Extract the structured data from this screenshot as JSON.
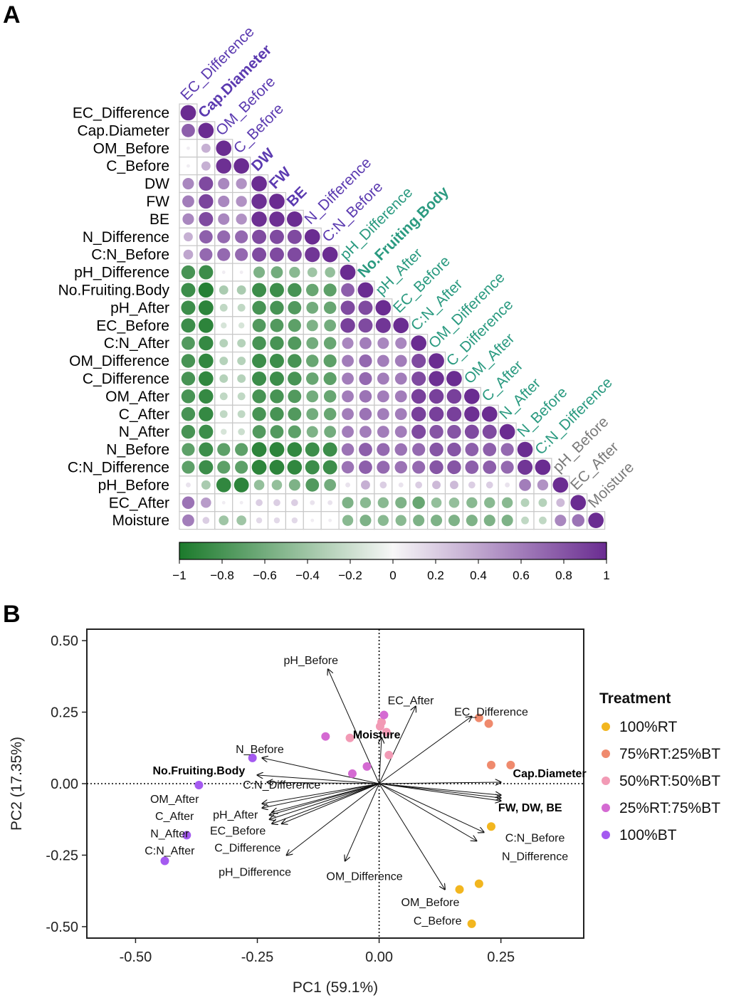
{
  "figure": {
    "panel_a_letter": "A",
    "panel_b_letter": "B"
  },
  "colors": {
    "purple_strong": "#6a2c91",
    "green_strong": "#1b7a2b",
    "neutral": "#f7f7f7",
    "label_purple": "#5b3ab0",
    "label_green": "#2a9a80",
    "label_gray": "#7a7a7a",
    "grid": "#c8c8c8",
    "treatment_100RT": "#f2b61f",
    "treatment_75RT25BT": "#ef8a6d",
    "treatment_50RT50BT": "#f29ab5",
    "treatment_25RT75BT": "#d46ad2",
    "treatment_100BT": "#a45af0"
  },
  "chart_data": [
    {
      "type": "heatmap",
      "variables": [
        "EC_Difference",
        "Cap.Diameter",
        "OM_Before",
        "C_Before",
        "DW",
        "FW",
        "BE",
        "N_Difference",
        "C:N_Before",
        "pH_Difference",
        "No.Fruiting.Body",
        "pH_After",
        "EC_Before",
        "C:N_After",
        "OM_Difference",
        "C_Difference",
        "OM_After",
        "C_After",
        "N_After",
        "N_Before",
        "C:N_Difference",
        "pH_Before",
        "EC_After",
        "Moisture"
      ],
      "column_labels": [
        "EC_Difference",
        "Cap.Diameter",
        "OM_Before",
        "C_Before",
        "DW",
        "FW",
        "BE",
        "N_Difference",
        "C:N_Before",
        "pH_Difference",
        "No.Fruiting.Body",
        "pH_After",
        "EC_Before",
        "C:N_After",
        "OM_Difference",
        "C_Difference",
        "OM_After",
        "C_After",
        "N_After",
        "N_Before",
        "C:N_Difference",
        "pH_Before",
        "EC_After",
        "Moisture"
      ],
      "bold_column_labels": [
        "Cap.Diameter",
        "DW",
        "FW",
        "BE",
        "No.Fruiting.Body"
      ],
      "label_groups": [
        "purple",
        "purple",
        "purple",
        "purple",
        "purple",
        "purple",
        "purple",
        "purple",
        "purple",
        "green",
        "green",
        "green",
        "green",
        "green",
        "green",
        "green",
        "green",
        "green",
        "green",
        "green",
        "green",
        "gray",
        "gray",
        "gray"
      ],
      "lower_triangle": [
        [
          1
        ],
        [
          0.75,
          1
        ],
        [
          0.05,
          0.35,
          1
        ],
        [
          0.05,
          0.35,
          0.98,
          1
        ],
        [
          0.55,
          0.85,
          0.55,
          0.5,
          1
        ],
        [
          0.6,
          0.88,
          0.55,
          0.5,
          0.98,
          1
        ],
        [
          0.55,
          0.85,
          0.55,
          0.5,
          0.98,
          0.98,
          1
        ],
        [
          0.35,
          0.75,
          0.7,
          0.7,
          0.85,
          0.85,
          0.85,
          1
        ],
        [
          0.4,
          0.7,
          0.7,
          0.7,
          0.85,
          0.85,
          0.85,
          0.95,
          1
        ],
        [
          -0.8,
          -0.85,
          0.05,
          0.05,
          -0.55,
          -0.6,
          -0.5,
          -0.4,
          -0.45,
          1
        ],
        [
          -0.85,
          -0.95,
          -0.35,
          -0.35,
          -0.85,
          -0.85,
          -0.8,
          -0.65,
          -0.7,
          0.75,
          1
        ],
        [
          -0.85,
          -0.92,
          -0.25,
          -0.25,
          -0.8,
          -0.8,
          -0.75,
          -0.6,
          -0.65,
          0.85,
          0.85,
          1
        ],
        [
          -0.85,
          -0.92,
          -0.15,
          -0.15,
          -0.75,
          -0.75,
          -0.7,
          -0.55,
          -0.6,
          0.9,
          0.85,
          0.95,
          1
        ],
        [
          -0.75,
          -0.88,
          -0.3,
          -0.3,
          -0.8,
          -0.8,
          -0.75,
          -0.6,
          -0.65,
          0.55,
          0.6,
          0.55,
          0.55,
          1
        ],
        [
          -0.8,
          -0.9,
          -0.3,
          -0.3,
          -0.85,
          -0.85,
          -0.8,
          -0.65,
          -0.7,
          0.6,
          0.7,
          0.6,
          0.6,
          0.85,
          1
        ],
        [
          -0.8,
          -0.9,
          -0.3,
          -0.3,
          -0.85,
          -0.85,
          -0.8,
          -0.65,
          -0.7,
          0.6,
          0.7,
          0.6,
          0.6,
          0.85,
          0.98,
          1
        ],
        [
          -0.8,
          -0.88,
          -0.25,
          -0.25,
          -0.8,
          -0.8,
          -0.75,
          -0.6,
          -0.65,
          0.6,
          0.65,
          0.6,
          0.6,
          0.9,
          0.9,
          0.9,
          1
        ],
        [
          -0.8,
          -0.88,
          -0.25,
          -0.25,
          -0.8,
          -0.8,
          -0.75,
          -0.6,
          -0.65,
          0.6,
          0.65,
          0.6,
          0.6,
          0.9,
          0.9,
          0.9,
          0.98,
          1
        ],
        [
          -0.8,
          -0.85,
          -0.15,
          -0.2,
          -0.75,
          -0.75,
          -0.7,
          -0.55,
          -0.6,
          0.6,
          0.6,
          0.6,
          0.6,
          0.85,
          0.8,
          0.8,
          0.85,
          0.85,
          1
        ],
        [
          -0.7,
          -0.85,
          -0.7,
          -0.7,
          -0.92,
          -0.92,
          -0.9,
          -0.85,
          -0.85,
          0.65,
          0.75,
          0.7,
          0.65,
          0.7,
          0.8,
          0.8,
          0.75,
          0.75,
          0.7,
          1
        ],
        [
          -0.7,
          -0.85,
          -0.7,
          -0.7,
          -0.92,
          -0.92,
          -0.9,
          -0.85,
          -0.85,
          0.65,
          0.75,
          0.7,
          0.65,
          0.7,
          0.8,
          0.8,
          0.75,
          0.75,
          0.7,
          0.95,
          1
        ],
        [
          0.1,
          -0.35,
          -0.9,
          -0.92,
          -0.45,
          -0.45,
          -0.55,
          -0.75,
          -0.6,
          0.1,
          0.35,
          0.2,
          0.1,
          0.2,
          0.3,
          0.3,
          0.2,
          0.2,
          0.1,
          0.6,
          0.5,
          1
        ],
        [
          0.65,
          0.45,
          0.05,
          0.05,
          0.2,
          0.2,
          0.2,
          0.1,
          0.1,
          -0.55,
          -0.5,
          -0.5,
          -0.55,
          -0.65,
          -0.45,
          -0.45,
          -0.5,
          -0.5,
          -0.5,
          -0.3,
          -0.3,
          0.3,
          1
        ],
        [
          0.6,
          0.2,
          -0.4,
          -0.4,
          0.15,
          0.15,
          0.15,
          0.05,
          0.05,
          -0.5,
          -0.55,
          -0.5,
          -0.5,
          -0.55,
          -0.55,
          -0.55,
          -0.55,
          -0.55,
          -0.55,
          -0.25,
          -0.25,
          0.55,
          0.65,
          1
        ]
      ],
      "colorbar": {
        "min": -1,
        "max": 1,
        "ticks": [
          "−1",
          "−0.8",
          "−0.6",
          "−0.4",
          "−0.2",
          "0",
          "0.2",
          "0.4",
          "0.6",
          "0.8",
          "1"
        ]
      }
    },
    {
      "type": "scatter",
      "xlabel": "PC1 (59.1%)",
      "ylabel": "PC2 (17.35%)",
      "xlim": [
        -0.6,
        0.42
      ],
      "ylim": [
        -0.54,
        0.54
      ],
      "x_ticks": [
        -0.5,
        -0.25,
        0.0,
        0.25
      ],
      "x_tick_labels": [
        "-0.50",
        "-0.25",
        "0.00",
        "0.25"
      ],
      "y_ticks": [
        0.5,
        0.25,
        0.0,
        -0.25,
        -0.5
      ],
      "y_tick_labels": [
        "0.50",
        "0.25",
        "0.00",
        "-0.25",
        "-0.50"
      ],
      "legend": {
        "title": "Treatment",
        "position": "right"
      },
      "series": [
        {
          "name": "100%RT",
          "color_key": "treatment_100RT",
          "x": [
            0.23,
            0.165,
            0.205,
            0.19
          ],
          "y": [
            -0.15,
            -0.37,
            -0.35,
            -0.49
          ]
        },
        {
          "name": "75%RT:25%BT",
          "color_key": "treatment_75RT25BT",
          "x": [
            0.205,
            0.225,
            0.23,
            0.27
          ],
          "y": [
            0.23,
            0.21,
            0.065,
            0.065
          ]
        },
        {
          "name": "50%RT:50%BT",
          "color_key": "treatment_50RT50BT",
          "x": [
            0.005,
            0.015,
            0.02,
            -0.06,
            0.002
          ],
          "y": [
            0.215,
            0.18,
            0.1,
            0.16,
            0.2
          ]
        },
        {
          "name": "25%RT:75%BT",
          "color_key": "treatment_25RT75BT",
          "x": [
            -0.11,
            -0.055,
            -0.025,
            0.01
          ],
          "y": [
            0.165,
            0.035,
            0.06,
            0.24
          ]
        },
        {
          "name": "100%BT",
          "color_key": "treatment_100BT",
          "x": [
            -0.26,
            -0.37,
            -0.395,
            -0.44
          ],
          "y": [
            0.09,
            -0.005,
            -0.18,
            -0.27
          ]
        }
      ],
      "loadings": [
        {
          "label": "pH_Before",
          "x": -0.105,
          "y": 0.4
        },
        {
          "label": "EC_After",
          "x": 0.075,
          "y": 0.27
        },
        {
          "label": "EC_Difference",
          "x": 0.19,
          "y": 0.235
        },
        {
          "label": "Moisture",
          "x": 0.005,
          "y": 0.16
        },
        {
          "label": "N_Before",
          "x": -0.24,
          "y": 0.09
        },
        {
          "label": "No.Fruiting.Body",
          "x": -0.25,
          "y": 0.03
        },
        {
          "label": "C:N_Difference",
          "x": -0.23,
          "y": 0.005
        },
        {
          "label": "Cap.Diameter",
          "x": 0.25,
          "y": 0.005
        },
        {
          "label": "FW",
          "x": 0.25,
          "y": -0.04
        },
        {
          "label": "DW",
          "x": 0.25,
          "y": -0.05
        },
        {
          "label": "BE",
          "x": 0.25,
          "y": -0.06
        },
        {
          "label": "OM_After",
          "x": -0.24,
          "y": -0.07
        },
        {
          "label": "C_After",
          "x": -0.24,
          "y": -0.085
        },
        {
          "label": "pH_After",
          "x": -0.22,
          "y": -0.1
        },
        {
          "label": "N_After",
          "x": -0.225,
          "y": -0.11
        },
        {
          "label": "EC_Before",
          "x": -0.225,
          "y": -0.125
        },
        {
          "label": "C:N_After",
          "x": -0.22,
          "y": -0.14
        },
        {
          "label": "C_Difference",
          "x": -0.2,
          "y": -0.14
        },
        {
          "label": "C:N_Before",
          "x": 0.215,
          "y": -0.17
        },
        {
          "label": "N_Difference",
          "x": 0.2,
          "y": -0.2
        },
        {
          "label": "pH_Difference",
          "x": -0.19,
          "y": -0.25
        },
        {
          "label": "OM_Difference",
          "x": -0.07,
          "y": -0.27
        },
        {
          "label": "OM_Before",
          "x": 0.135,
          "y": -0.37
        }
      ],
      "bold_loading_labels": [
        "Moisture",
        "No.Fruiting.Body",
        "Cap.Diameter",
        "FW, DW, BE"
      ],
      "label_placements": [
        {
          "text": "pH_Before",
          "x": -0.14,
          "y": 0.43,
          "bold": false
        },
        {
          "text": "EC_After",
          "x": 0.065,
          "y": 0.29,
          "bold": false
        },
        {
          "text": "EC_Difference",
          "x": 0.23,
          "y": 0.25,
          "bold": false
        },
        {
          "text": "Moisture",
          "x": -0.005,
          "y": 0.17,
          "bold": true
        },
        {
          "text": "N_Before",
          "x": -0.245,
          "y": 0.12,
          "bold": false
        },
        {
          "text": "No.Fruiting.Body",
          "x": -0.37,
          "y": 0.045,
          "bold": true
        },
        {
          "text": "C:N_Difference",
          "x": -0.2,
          "y": -0.005,
          "bold": false
        },
        {
          "text": "Cap.Diameter",
          "x": 0.35,
          "y": 0.035,
          "bold": true
        },
        {
          "text": "FW, DW, BE",
          "x": 0.31,
          "y": -0.085,
          "bold": true
        },
        {
          "text": "OM_After",
          "x": -0.42,
          "y": -0.055,
          "bold": false
        },
        {
          "text": "C_After",
          "x": -0.42,
          "y": -0.115,
          "bold": false
        },
        {
          "text": "pH_After",
          "x": -0.295,
          "y": -0.11,
          "bold": false
        },
        {
          "text": "N_After",
          "x": -0.43,
          "y": -0.175,
          "bold": false
        },
        {
          "text": "EC_Before",
          "x": -0.29,
          "y": -0.165,
          "bold": false
        },
        {
          "text": "C:N_After",
          "x": -0.43,
          "y": -0.235,
          "bold": false
        },
        {
          "text": "C_Difference",
          "x": -0.27,
          "y": -0.225,
          "bold": false
        },
        {
          "text": "C:N_Before",
          "x": 0.32,
          "y": -0.19,
          "bold": false
        },
        {
          "text": "N_Difference",
          "x": 0.32,
          "y": -0.255,
          "bold": false
        },
        {
          "text": "pH_Difference",
          "x": -0.255,
          "y": -0.31,
          "bold": false
        },
        {
          "text": "OM_Difference",
          "x": -0.03,
          "y": -0.325,
          "bold": false
        },
        {
          "text": "OM_Before",
          "x": 0.105,
          "y": -0.415,
          "bold": false
        },
        {
          "text": "C_Before",
          "x": 0.12,
          "y": -0.48,
          "bold": false
        }
      ]
    }
  ]
}
